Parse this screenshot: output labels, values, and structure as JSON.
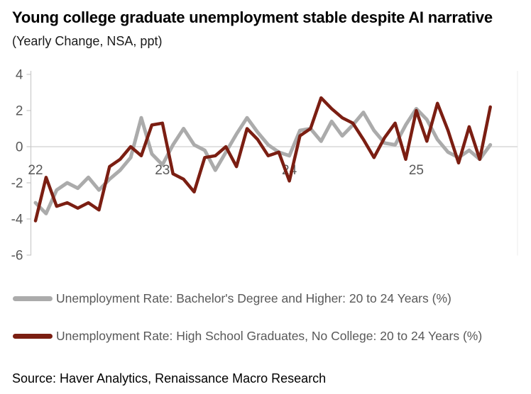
{
  "title": "Young college graduate unemployment stable despite AI narrative",
  "subtitle": "(Yearly Change, NSA, ppt)",
  "source": "Source: Haver Analytics, Renaissance Macro Research",
  "colors": {
    "bachelor_line": "#ABABAB",
    "hs_line": "#7B1E12",
    "axis_text": "#595959",
    "axis_line": "#C9C9C9",
    "zero_gridline": "#D9D9D9",
    "plot_border": "#ECECEC"
  },
  "legend": [
    {
      "label": "Unemployment Rate: Bachelor's Degree and Higher: 20 to 24 Years (%)",
      "series_key": "bachelor"
    },
    {
      "label": "Unemployment Rate: High School Graduates, No College: 20 to 24 Years (%)",
      "series_key": "hs"
    }
  ],
  "chart_data": {
    "type": "line",
    "title": "Young college graduate unemployment stable despite AI narrative",
    "subtitle": "(Yearly Change, NSA, ppt)",
    "x_unit": "month",
    "x_start": "2022-01",
    "x_end": "2025-08",
    "n_points": 44,
    "x_tick_labels": [
      "22",
      "23",
      "24",
      "25"
    ],
    "x_tick_month_index": [
      0,
      12,
      24,
      36
    ],
    "ylim": [
      -6,
      4
    ],
    "y_ticks": [
      4,
      2,
      0,
      -2,
      -4,
      -6
    ],
    "grid": "zero-line-only",
    "legend_position": "bottom-left",
    "series": [
      {
        "key": "bachelor",
        "name": "Unemployment Rate: Bachelor's Degree and Higher: 20 to 24 Years (%)",
        "color": "#ABABAB",
        "stroke_width": 5,
        "values": [
          -3.1,
          -3.7,
          -2.4,
          -2.0,
          -2.3,
          -1.7,
          -2.4,
          -1.8,
          -1.3,
          -0.6,
          1.6,
          -0.4,
          -1.0,
          0.1,
          1.0,
          0.1,
          -0.2,
          -1.3,
          -0.3,
          0.7,
          1.6,
          0.8,
          0.1,
          -0.3,
          -0.5,
          0.9,
          1.0,
          0.3,
          1.4,
          0.6,
          1.2,
          1.9,
          0.9,
          0.2,
          0.1,
          1.2,
          2.1,
          1.5,
          0.4,
          -0.3,
          -0.6,
          -0.2,
          -0.7,
          0.1
        ]
      },
      {
        "key": "hs",
        "name": "Unemployment Rate: High School Graduates, No College: 20 to 24 Years (%)",
        "color": "#7B1E12",
        "stroke_width": 4.5,
        "values": [
          -4.1,
          -1.7,
          -3.3,
          -3.1,
          -3.4,
          -3.1,
          -3.5,
          -1.1,
          -0.7,
          0.0,
          -0.5,
          1.2,
          1.3,
          -1.5,
          -1.8,
          -2.5,
          -0.6,
          -0.5,
          0.0,
          -1.1,
          1.0,
          0.4,
          -0.5,
          -0.3,
          -1.9,
          0.6,
          1.0,
          2.7,
          2.1,
          1.6,
          1.3,
          0.4,
          -0.6,
          0.5,
          1.3,
          -0.7,
          2.0,
          0.3,
          2.4,
          0.9,
          -0.9,
          1.1,
          -0.7,
          2.2
        ]
      }
    ]
  }
}
